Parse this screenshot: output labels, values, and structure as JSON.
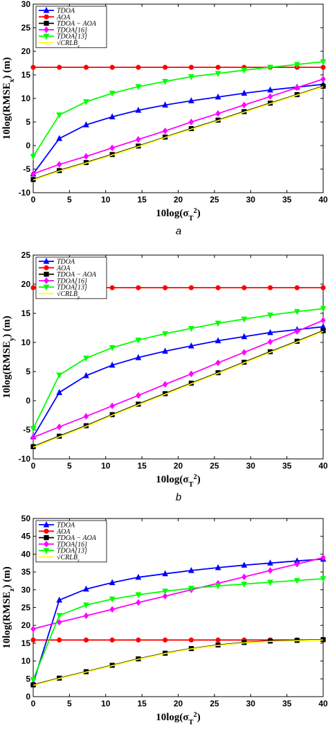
{
  "chart_data": [
    {
      "type": "line",
      "panel_label": "a",
      "xlabel": "10log(σ_T^2)",
      "ylabel": "10log(RMSE_x) (m)",
      "xlim": [
        0,
        40
      ],
      "ylim": [
        -10,
        30
      ],
      "xticks": [
        "0",
        "5",
        "10",
        "15",
        "20",
        "25",
        "30",
        "35",
        "40"
      ],
      "yticks": [
        "-10",
        "-5",
        "0",
        "5",
        "10",
        "15",
        "20",
        "25",
        "30"
      ],
      "legend_position": "top-left",
      "grid": false,
      "x": [
        0,
        3.6,
        7.3,
        10.9,
        14.5,
        18.2,
        21.8,
        25.5,
        29.1,
        32.7,
        36.4,
        40
      ],
      "series": [
        {
          "name": "TDOA",
          "color": "#0000ff",
          "marker": "triangle-up",
          "values": [
            -6,
            1.5,
            4.4,
            6.1,
            7.5,
            8.6,
            9.5,
            10.3,
            11.1,
            11.8,
            12.4,
            13
          ]
        },
        {
          "name": "AOA",
          "color": "#ff0000",
          "marker": "circle",
          "values": [
            16.6,
            16.6,
            16.6,
            16.6,
            16.6,
            16.6,
            16.6,
            16.6,
            16.6,
            16.6,
            16.6,
            16.6
          ]
        },
        {
          "name": "TDOA − AOA",
          "color": "#000000",
          "marker": "square",
          "values": [
            -7.2,
            -5.3,
            -3.6,
            -1.9,
            -0.1,
            1.8,
            3.6,
            5.4,
            7.2,
            9,
            10.8,
            12.6
          ]
        },
        {
          "name": "TDOA[16]",
          "color": "#ff00ff",
          "marker": "diamond",
          "values": [
            -6,
            -4,
            -2.3,
            -0.5,
            1.3,
            3.1,
            5,
            6.8,
            8.6,
            10.4,
            12.3,
            14.1
          ]
        },
        {
          "name": "TDOA[13]",
          "color": "#00ff00",
          "marker": "triangle-down",
          "values": [
            -2.3,
            6.5,
            9.3,
            11.1,
            12.5,
            13.6,
            14.6,
            15.3,
            16,
            16.6,
            17.2,
            17.8
          ]
        },
        {
          "name": "√CRLB_x",
          "color": "#ffff00",
          "marker": "none",
          "values": [
            -7.3,
            -5.4,
            -3.7,
            -2,
            -0.2,
            1.7,
            3.5,
            5.3,
            7.1,
            8.9,
            10.7,
            12.5
          ]
        }
      ]
    },
    {
      "type": "line",
      "panel_label": "b",
      "xlabel": "10log(σ_T^2)",
      "ylabel": "10log(RMSE_y) (m)",
      "xlim": [
        0,
        40
      ],
      "ylim": [
        -10,
        25
      ],
      "xticks": [
        "0",
        "5",
        "10",
        "15",
        "20",
        "25",
        "30",
        "35",
        "40"
      ],
      "yticks": [
        "-10",
        "-5",
        "0",
        "5",
        "10",
        "15",
        "20",
        "25"
      ],
      "legend_position": "top-left",
      "grid": false,
      "x": [
        0,
        3.6,
        7.3,
        10.9,
        14.5,
        18.2,
        21.8,
        25.5,
        29.1,
        32.7,
        36.4,
        40
      ],
      "series": [
        {
          "name": "TDOA",
          "color": "#0000ff",
          "marker": "triangle-up",
          "values": [
            -6.2,
            1.4,
            4.3,
            6.1,
            7.4,
            8.5,
            9.4,
            10.3,
            11,
            11.7,
            12.2,
            12.7
          ]
        },
        {
          "name": "AOA",
          "color": "#ff0000",
          "marker": "circle",
          "values": [
            19.4,
            19.4,
            19.4,
            19.4,
            19.4,
            19.4,
            19.4,
            19.4,
            19.4,
            19.4,
            19.4,
            19.4
          ]
        },
        {
          "name": "TDOA − AOA",
          "color": "#000000",
          "marker": "square",
          "values": [
            -7.9,
            -6.1,
            -4.3,
            -2.4,
            -0.6,
            1.2,
            3,
            4.8,
            6.6,
            8.4,
            10.2,
            12
          ]
        },
        {
          "name": "TDOA[16]",
          "color": "#ff00ff",
          "marker": "diamond",
          "values": [
            -6.3,
            -4.5,
            -2.7,
            -0.9,
            0.9,
            2.8,
            4.6,
            6.5,
            8.3,
            10.1,
            11.9,
            13.8
          ]
        },
        {
          "name": "TDOA[13]",
          "color": "#00ff00",
          "marker": "triangle-down",
          "values": [
            -4.8,
            4.4,
            7.3,
            9.1,
            10.4,
            11.5,
            12.4,
            13.3,
            14,
            14.7,
            15.3,
            15.8
          ]
        },
        {
          "name": "√CRLB_y",
          "color": "#ffff00",
          "marker": "none",
          "values": [
            -8,
            -6.2,
            -4.4,
            -2.5,
            -0.7,
            1.1,
            2.9,
            4.7,
            6.5,
            8.3,
            10.1,
            11.9
          ]
        }
      ]
    },
    {
      "type": "line",
      "panel_label": "c",
      "xlabel": "10log(σ_T^2)",
      "ylabel": "10log(RMSE_z) (m)",
      "xlim": [
        0,
        40
      ],
      "ylim": [
        0,
        50
      ],
      "xticks": [
        "0",
        "5",
        "10",
        "15",
        "20",
        "25",
        "30",
        "35",
        "40"
      ],
      "yticks": [
        "0",
        "5",
        "10",
        "15",
        "20",
        "25",
        "30",
        "35",
        "40",
        "45",
        "50"
      ],
      "legend_position": "top-left",
      "grid": false,
      "x": [
        0,
        3.6,
        7.3,
        10.9,
        14.5,
        18.2,
        21.8,
        25.5,
        29.1,
        32.7,
        36.4,
        40
      ],
      "series": [
        {
          "name": "TDOA",
          "color": "#0000ff",
          "marker": "triangle-up",
          "values": [
            3.8,
            27.1,
            30.2,
            32,
            33.5,
            34.5,
            35.4,
            36.2,
            36.9,
            37.5,
            38.1,
            38.6
          ]
        },
        {
          "name": "AOA",
          "color": "#ff0000",
          "marker": "circle",
          "values": [
            15.9,
            15.9,
            15.9,
            15.9,
            15.9,
            15.9,
            15.9,
            15.9,
            15.9,
            15.9,
            15.9,
            15.9
          ]
        },
        {
          "name": "TDOA − AOA",
          "color": "#000000",
          "marker": "square",
          "values": [
            3.3,
            5.2,
            7,
            8.8,
            10.6,
            12.2,
            13.5,
            14.5,
            15.2,
            15.6,
            15.8,
            16
          ]
        },
        {
          "name": "TDOA[16]",
          "color": "#ff00ff",
          "marker": "diamond",
          "values": [
            19,
            20.9,
            22.7,
            24.5,
            26.4,
            28.2,
            30,
            31.8,
            33.6,
            35.4,
            37.2,
            39
          ]
        },
        {
          "name": "TDOA[13]",
          "color": "#00ff00",
          "marker": "triangle-down",
          "values": [
            4.8,
            22.8,
            25.7,
            27.4,
            28.6,
            29.6,
            30.4,
            31.1,
            31.6,
            32.1,
            32.6,
            33.1
          ]
        },
        {
          "name": "√CRLB_z",
          "color": "#ffff00",
          "marker": "none",
          "values": [
            3.2,
            5.1,
            6.9,
            8.7,
            10.5,
            12.1,
            13.4,
            14.4,
            15.1,
            15.5,
            15.7,
            15.9
          ]
        }
      ]
    }
  ]
}
